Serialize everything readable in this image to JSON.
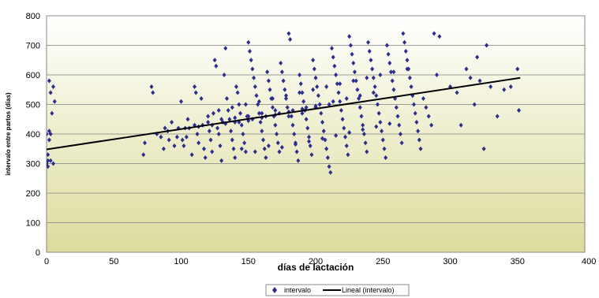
{
  "chart_data": {
    "type": "scatter",
    "xlabel": "días de lactación",
    "ylabel": "intervalo entre partos (días)",
    "xlim": [
      0,
      400
    ],
    "ylim": [
      0,
      800
    ],
    "x_ticks": [
      "0",
      "50",
      "100",
      "150",
      "200",
      "250",
      "300",
      "350",
      "400"
    ],
    "y_ticks": [
      "0",
      "100",
      "200",
      "300",
      "400",
      "500",
      "600",
      "700",
      "800"
    ],
    "grid": true,
    "legend_position": "bottom",
    "colors": {
      "points": "#2b2e8c",
      "trend": "#000000",
      "plot_top": "#ffffff",
      "plot_bottom": "#dcdc9c"
    },
    "series": [
      {
        "name": "intervalo",
        "kind": "scatter",
        "points": [
          [
            0,
            300
          ],
          [
            1,
            290
          ],
          [
            1,
            310
          ],
          [
            2,
            380
          ],
          [
            2,
            410
          ],
          [
            3,
            400
          ],
          [
            3,
            540
          ],
          [
            5,
            560
          ],
          [
            4,
            470
          ],
          [
            6,
            510
          ],
          [
            2,
            580
          ],
          [
            1,
            330
          ],
          [
            0,
            400
          ],
          [
            3,
            310
          ],
          [
            5,
            300
          ],
          [
            72,
            330
          ],
          [
            73,
            370
          ],
          [
            78,
            560
          ],
          [
            79,
            540
          ],
          [
            82,
            400
          ],
          [
            85,
            390
          ],
          [
            87,
            350
          ],
          [
            88,
            420
          ],
          [
            90,
            410
          ],
          [
            91,
            380
          ],
          [
            93,
            440
          ],
          [
            95,
            360
          ],
          [
            97,
            390
          ],
          [
            98,
            420
          ],
          [
            100,
            510
          ],
          [
            101,
            380
          ],
          [
            102,
            360
          ],
          [
            104,
            390
          ],
          [
            105,
            450
          ],
          [
            106,
            420
          ],
          [
            108,
            330
          ],
          [
            110,
            560
          ],
          [
            111,
            540
          ],
          [
            112,
            400
          ],
          [
            113,
            370
          ],
          [
            115,
            520
          ],
          [
            116,
            430
          ],
          [
            117,
            350
          ],
          [
            118,
            320
          ],
          [
            120,
            460
          ],
          [
            121,
            410
          ],
          [
            122,
            380
          ],
          [
            123,
            340
          ],
          [
            124,
            470
          ],
          [
            125,
            650
          ],
          [
            126,
            630
          ],
          [
            127,
            420
          ],
          [
            128,
            400
          ],
          [
            129,
            360
          ],
          [
            130,
            310
          ],
          [
            131,
            440
          ],
          [
            132,
            600
          ],
          [
            133,
            690
          ],
          [
            134,
            520
          ],
          [
            135,
            480
          ],
          [
            136,
            450
          ],
          [
            137,
            410
          ],
          [
            138,
            380
          ],
          [
            139,
            350
          ],
          [
            140,
            320
          ],
          [
            141,
            560
          ],
          [
            142,
            540
          ],
          [
            143,
            500
          ],
          [
            144,
            470
          ],
          [
            145,
            430
          ],
          [
            146,
            400
          ],
          [
            147,
            370
          ],
          [
            148,
            340
          ],
          [
            149,
            460
          ],
          [
            150,
            710
          ],
          [
            151,
            680
          ],
          [
            152,
            650
          ],
          [
            153,
            620
          ],
          [
            154,
            590
          ],
          [
            155,
            560
          ],
          [
            156,
            530
          ],
          [
            157,
            500
          ],
          [
            158,
            470
          ],
          [
            159,
            440
          ],
          [
            160,
            410
          ],
          [
            161,
            380
          ],
          [
            162,
            350
          ],
          [
            163,
            320
          ],
          [
            164,
            610
          ],
          [
            165,
            580
          ],
          [
            166,
            550
          ],
          [
            167,
            520
          ],
          [
            168,
            490
          ],
          [
            169,
            460
          ],
          [
            170,
            430
          ],
          [
            171,
            400
          ],
          [
            172,
            370
          ],
          [
            173,
            340
          ],
          [
            174,
            640
          ],
          [
            175,
            610
          ],
          [
            176,
            580
          ],
          [
            177,
            550
          ],
          [
            178,
            520
          ],
          [
            179,
            490
          ],
          [
            180,
            740
          ],
          [
            181,
            720
          ],
          [
            182,
            460
          ],
          [
            183,
            430
          ],
          [
            184,
            400
          ],
          [
            185,
            370
          ],
          [
            186,
            340
          ],
          [
            187,
            310
          ],
          [
            188,
            600
          ],
          [
            189,
            570
          ],
          [
            190,
            540
          ],
          [
            191,
            510
          ],
          [
            192,
            480
          ],
          [
            193,
            450
          ],
          [
            194,
            420
          ],
          [
            195,
            390
          ],
          [
            196,
            360
          ],
          [
            197,
            330
          ],
          [
            198,
            650
          ],
          [
            199,
            620
          ],
          [
            200,
            590
          ],
          [
            201,
            560
          ],
          [
            202,
            530
          ],
          [
            203,
            500
          ],
          [
            204,
            470
          ],
          [
            205,
            440
          ],
          [
            206,
            410
          ],
          [
            207,
            380
          ],
          [
            208,
            350
          ],
          [
            209,
            320
          ],
          [
            210,
            290
          ],
          [
            211,
            270
          ],
          [
            212,
            690
          ],
          [
            213,
            660
          ],
          [
            214,
            630
          ],
          [
            215,
            600
          ],
          [
            216,
            570
          ],
          [
            217,
            540
          ],
          [
            218,
            510
          ],
          [
            219,
            480
          ],
          [
            220,
            450
          ],
          [
            221,
            420
          ],
          [
            222,
            390
          ],
          [
            223,
            360
          ],
          [
            224,
            330
          ],
          [
            225,
            730
          ],
          [
            226,
            700
          ],
          [
            227,
            670
          ],
          [
            228,
            640
          ],
          [
            229,
            610
          ],
          [
            230,
            580
          ],
          [
            231,
            550
          ],
          [
            232,
            520
          ],
          [
            233,
            490
          ],
          [
            234,
            460
          ],
          [
            235,
            430
          ],
          [
            236,
            400
          ],
          [
            237,
            370
          ],
          [
            238,
            340
          ],
          [
            239,
            710
          ],
          [
            240,
            680
          ],
          [
            241,
            650
          ],
          [
            242,
            620
          ],
          [
            243,
            590
          ],
          [
            244,
            560
          ],
          [
            245,
            530
          ],
          [
            246,
            500
          ],
          [
            247,
            470
          ],
          [
            248,
            440
          ],
          [
            249,
            410
          ],
          [
            250,
            380
          ],
          [
            251,
            350
          ],
          [
            252,
            320
          ],
          [
            253,
            700
          ],
          [
            254,
            670
          ],
          [
            255,
            640
          ],
          [
            256,
            610
          ],
          [
            257,
            580
          ],
          [
            258,
            550
          ],
          [
            259,
            520
          ],
          [
            260,
            490
          ],
          [
            261,
            460
          ],
          [
            262,
            430
          ],
          [
            263,
            400
          ],
          [
            264,
            370
          ],
          [
            265,
            740
          ],
          [
            266,
            710
          ],
          [
            267,
            680
          ],
          [
            268,
            650
          ],
          [
            269,
            620
          ],
          [
            270,
            590
          ],
          [
            271,
            560
          ],
          [
            272,
            530
          ],
          [
            273,
            500
          ],
          [
            274,
            470
          ],
          [
            275,
            440
          ],
          [
            276,
            410
          ],
          [
            277,
            380
          ],
          [
            278,
            350
          ],
          [
            280,
            520
          ],
          [
            282,
            490
          ],
          [
            284,
            460
          ],
          [
            286,
            430
          ],
          [
            288,
            740
          ],
          [
            290,
            600
          ],
          [
            292,
            730
          ],
          [
            300,
            560
          ],
          [
            305,
            540
          ],
          [
            308,
            430
          ],
          [
            312,
            620
          ],
          [
            315,
            590
          ],
          [
            318,
            500
          ],
          [
            320,
            660
          ],
          [
            322,
            580
          ],
          [
            325,
            350
          ],
          [
            327,
            700
          ],
          [
            330,
            560
          ],
          [
            335,
            460
          ],
          [
            340,
            550
          ],
          [
            345,
            560
          ],
          [
            350,
            620
          ],
          [
            351,
            480
          ],
          [
            140,
            440
          ],
          [
            150,
            460
          ],
          [
            160,
            470
          ],
          [
            170,
            480
          ],
          [
            180,
            460
          ],
          [
            190,
            470
          ],
          [
            200,
            490
          ],
          [
            210,
            500
          ],
          [
            145,
            350
          ],
          [
            155,
            340
          ],
          [
            165,
            360
          ],
          [
            175,
            355
          ],
          [
            185,
            365
          ],
          [
            195,
            375
          ],
          [
            205,
            385
          ],
          [
            215,
            395
          ],
          [
            225,
            405
          ],
          [
            235,
            415
          ],
          [
            245,
            425
          ],
          [
            255,
            435
          ],
          [
            128,
            480
          ],
          [
            138,
            490
          ],
          [
            148,
            500
          ],
          [
            158,
            510
          ],
          [
            168,
            520
          ],
          [
            178,
            530
          ],
          [
            188,
            540
          ],
          [
            198,
            550
          ],
          [
            208,
            560
          ],
          [
            218,
            570
          ],
          [
            228,
            580
          ],
          [
            238,
            590
          ],
          [
            248,
            600
          ],
          [
            258,
            610
          ],
          [
            268,
            620
          ],
          [
            110,
            430
          ],
          [
            120,
            440
          ],
          [
            130,
            450
          ],
          [
            140,
            455
          ],
          [
            150,
            445
          ],
          [
            160,
            455
          ],
          [
            170,
            465
          ],
          [
            180,
            475
          ],
          [
            190,
            485
          ],
          [
            200,
            495
          ],
          [
            103,
            420
          ],
          [
            113,
            425
          ],
          [
            123,
            430
          ],
          [
            133,
            435
          ],
          [
            143,
            440
          ],
          [
            153,
            450
          ],
          [
            163,
            460
          ],
          [
            173,
            470
          ],
          [
            183,
            480
          ],
          [
            193,
            490
          ],
          [
            203,
            500
          ],
          [
            213,
            510
          ],
          [
            223,
            520
          ],
          [
            233,
            530
          ],
          [
            243,
            540
          ]
        ]
      },
      {
        "name": "Lineal (intervalo)",
        "kind": "line",
        "points": [
          [
            0,
            348
          ],
          [
            352,
            590
          ]
        ]
      }
    ]
  }
}
